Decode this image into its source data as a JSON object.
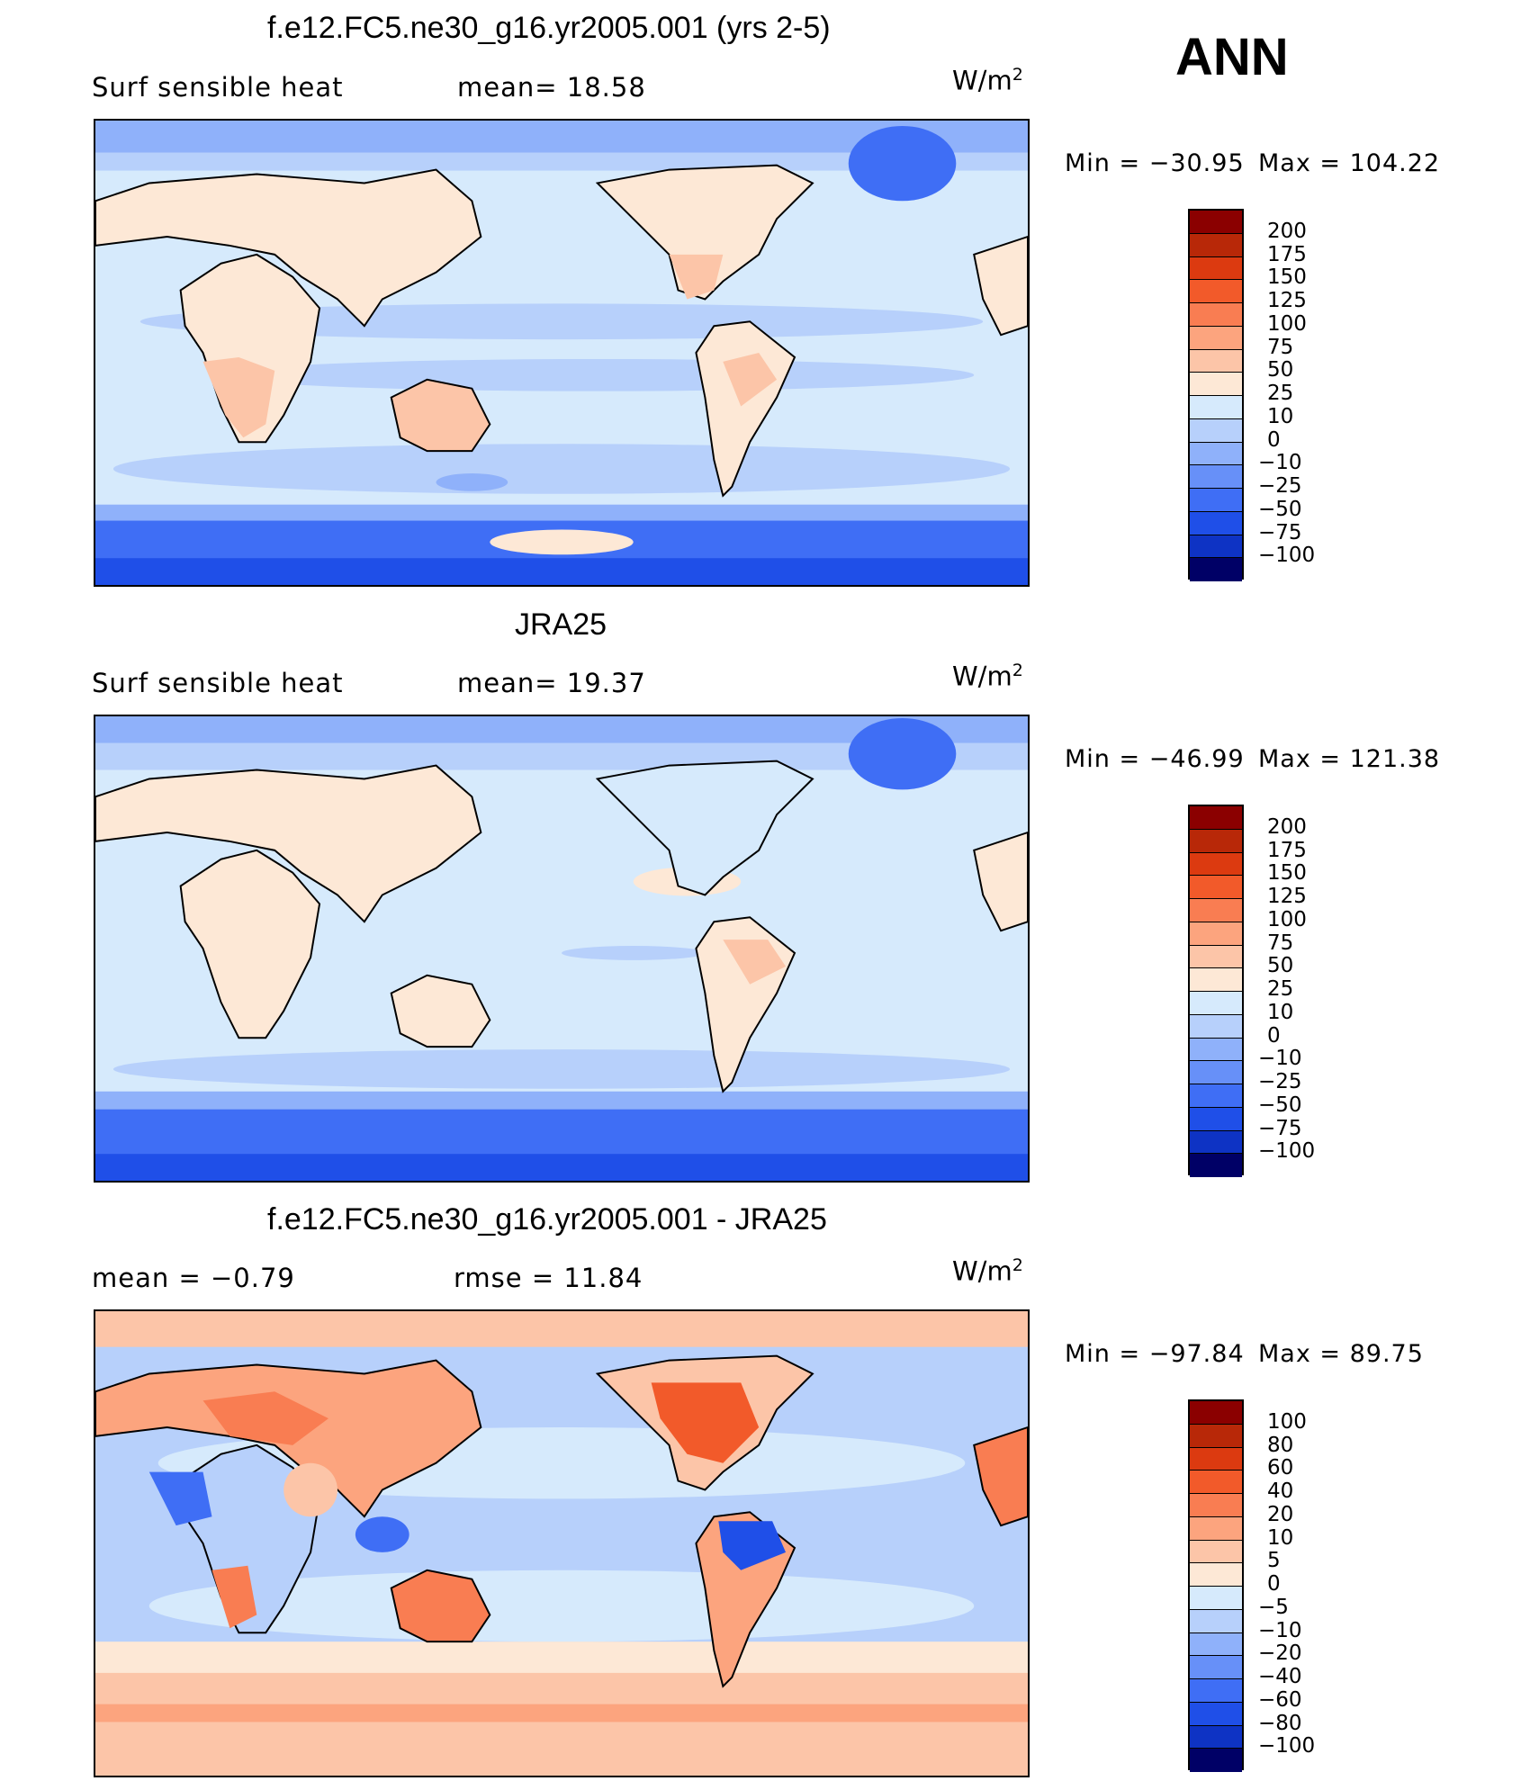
{
  "season": "ANN",
  "units": {
    "base": "W/m",
    "exp": "2"
  },
  "colors": {
    "pos": [
      "#fde8d6",
      "#fcc5a8",
      "#fca47e",
      "#f97d52",
      "#f25a2a",
      "#dc3a10",
      "#b82808",
      "#8b0000"
    ],
    "neg": [
      "#d6eafc",
      "#b7d0fb",
      "#8fb1fa",
      "#6790f8",
      "#3f6ef5",
      "#1f4fe8",
      "#0e33c4",
      "#061a8f",
      "#000066"
    ]
  },
  "panels": [
    {
      "title": "f.e12.FC5.ne30_g16.yr2005.001 (yrs 2-5)",
      "left_label": "Surf  sensible  heat",
      "center_label": "mean=   18.58",
      "min_label": "Min  =  −30.95",
      "max_label": "Max  =  104.22",
      "map_alt": "global surface sensible heat flux field, model",
      "colorbar": {
        "levels": [
          "200",
          "175",
          "150",
          "125",
          "100",
          "75",
          "50",
          "25",
          "10",
          "0",
          "−10",
          "−25",
          "−50",
          "−75",
          "−100"
        ],
        "colors": [
          "#8b0000",
          "#b82808",
          "#dc3a10",
          "#f25a2a",
          "#f97d52",
          "#fca47e",
          "#fcc5a8",
          "#fde8d6",
          "#d6eafc",
          "#b7d0fb",
          "#8fb1fa",
          "#6790f8",
          "#3f6ef5",
          "#1f4fe8",
          "#0e33c4",
          "#000066"
        ]
      }
    },
    {
      "title": "JRA25",
      "left_label": "Surf  sensible  heat",
      "center_label": "mean=   19.37",
      "min_label": "Min  =  −46.99",
      "max_label": "Max  =  121.38",
      "map_alt": "global surface sensible heat flux field, JRA25 reanalysis",
      "colorbar": {
        "levels": [
          "200",
          "175",
          "150",
          "125",
          "100",
          "75",
          "50",
          "25",
          "10",
          "0",
          "−10",
          "−25",
          "−50",
          "−75",
          "−100"
        ],
        "colors": [
          "#8b0000",
          "#b82808",
          "#dc3a10",
          "#f25a2a",
          "#f97d52",
          "#fca47e",
          "#fcc5a8",
          "#fde8d6",
          "#d6eafc",
          "#b7d0fb",
          "#8fb1fa",
          "#6790f8",
          "#3f6ef5",
          "#1f4fe8",
          "#0e33c4",
          "#000066"
        ]
      }
    },
    {
      "title": "f.e12.FC5.ne30_g16.yr2005.001 - JRA25",
      "left_label": "mean  =    −0.79",
      "center_label": "rmse  =    11.84",
      "min_label": "Min  =  −97.84",
      "max_label": "Max  =   89.75",
      "map_alt": "global surface sensible heat flux difference field",
      "colorbar": {
        "levels": [
          "100",
          "80",
          "60",
          "40",
          "20",
          "10",
          "5",
          "0",
          "−5",
          "−10",
          "−20",
          "−40",
          "−60",
          "−80",
          "−100"
        ],
        "colors": [
          "#8b0000",
          "#b82808",
          "#dc3a10",
          "#f25a2a",
          "#f97d52",
          "#fca47e",
          "#fcc5a8",
          "#fde8d6",
          "#d6eafc",
          "#b7d0fb",
          "#8fb1fa",
          "#6790f8",
          "#3f6ef5",
          "#1f4fe8",
          "#0e33c4",
          "#000066"
        ]
      }
    }
  ]
}
